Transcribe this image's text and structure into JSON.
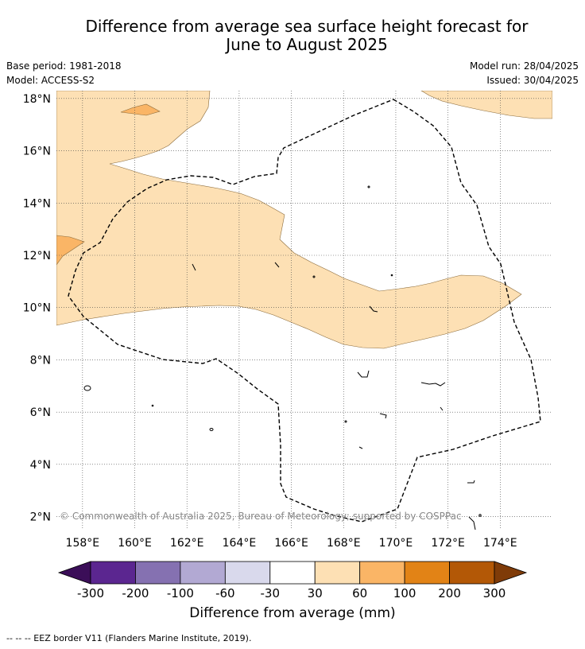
{
  "header": {
    "title_line1": "Difference from average sea surface height forecast for",
    "title_line2": "June to August 2025",
    "base_period": "Base period: 1981-2018",
    "model": "Model: ACCESS-S2",
    "model_run": "Model run: 28/04/2025",
    "issued": "Issued: 30/04/2025"
  },
  "map": {
    "lon_range": [
      157,
      176
    ],
    "lat_range": [
      1.5,
      18.3
    ],
    "lon_ticks": [
      "158°E",
      "160°E",
      "162°E",
      "164°E",
      "166°E",
      "168°E",
      "170°E",
      "172°E",
      "174°E"
    ],
    "lat_ticks": [
      "2°N",
      "4°N",
      "6°N",
      "8°N",
      "10°N",
      "12°N",
      "14°N",
      "16°N",
      "18°N"
    ],
    "copyright": "© Commonwealth of Australia 2025, Bureau of Meteorology; supported by COSPPac",
    "colors": {
      "band_30_60": "#fde0b4",
      "band_60_100": "#fab566",
      "grid": "#444444",
      "eez": "#000000"
    }
  },
  "colorbar": {
    "ticks": [
      "-300",
      "-200",
      "-100",
      "-60",
      "-30",
      "30",
      "60",
      "100",
      "200",
      "300"
    ],
    "colors": [
      "#3b0e58",
      "#5b2690",
      "#8571b1",
      "#b2a9d3",
      "#d9d9ec",
      "#ffffff",
      "#fde0b4",
      "#fab566",
      "#e28316",
      "#b35806",
      "#7f3b08"
    ],
    "label": "Difference from average (mm)"
  },
  "footnote": "--  --  -- EEZ border V11 (Flanders Marine Institute, 2019)."
}
